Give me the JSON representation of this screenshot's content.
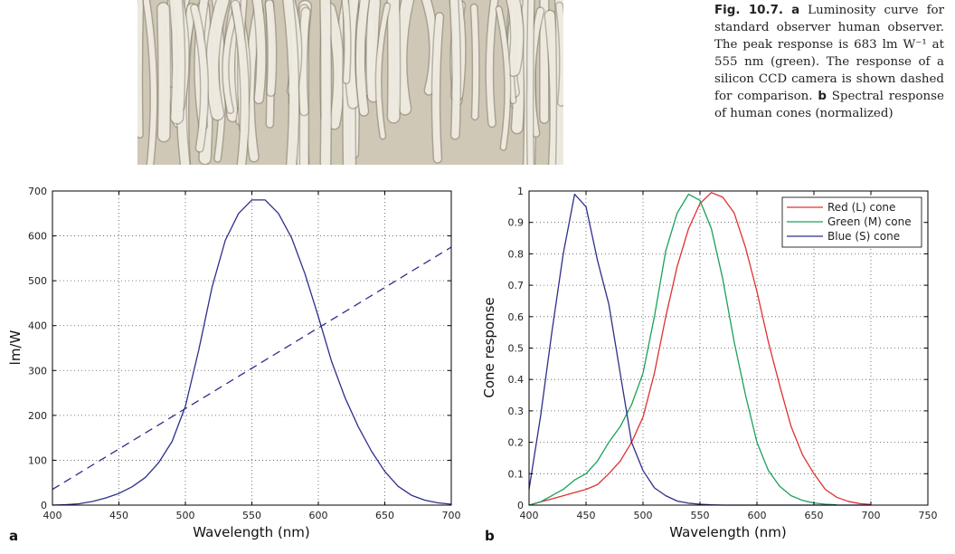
{
  "photo": {
    "icon": "sem-micrograph-image",
    "background": "#cfc8b6",
    "strand_color": "#f4f1e8",
    "shadow_color": "#8a8372"
  },
  "caption": {
    "label": "Fig. 10.7.",
    "part_a_letter": "a",
    "part_a_text": "Luminosity curve for standard observer human observer. The peak response is 683 lm W⁻¹ at 555 nm (green). The response of a silicon CCD camera is shown dashed for comparison.",
    "part_b_letter": "b",
    "part_b_text": "Spectral response of human cones (normalized)"
  },
  "chart_data": [
    {
      "type": "line",
      "panel_letter": "a",
      "xlabel": "Wavelength (nm)",
      "ylabel": "lm/W",
      "xlim": [
        400,
        700
      ],
      "ylim": [
        0,
        700
      ],
      "xticks": [
        400,
        450,
        500,
        550,
        600,
        650,
        700
      ],
      "yticks": [
        0,
        100,
        200,
        300,
        400,
        500,
        600,
        700
      ],
      "grid": true,
      "colors": {
        "line": "#2e2e8c"
      },
      "series": [
        {
          "style": "solid",
          "x": [
            400,
            410,
            420,
            430,
            440,
            450,
            460,
            470,
            480,
            490,
            500,
            510,
            520,
            530,
            540,
            550,
            560,
            570,
            580,
            590,
            600,
            610,
            620,
            630,
            640,
            650,
            660,
            670,
            680,
            690,
            700
          ],
          "y": [
            0,
            1,
            3,
            8,
            16,
            26,
            41,
            62,
            95,
            142,
            220,
            345,
            485,
            590,
            650,
            680,
            680,
            650,
            595,
            515,
            420,
            320,
            240,
            175,
            120,
            75,
            42,
            22,
            11,
            5,
            2
          ]
        },
        {
          "style": "dashed",
          "x": [
            400,
            700
          ],
          "y": [
            35,
            575
          ]
        }
      ]
    },
    {
      "type": "line",
      "panel_letter": "b",
      "xlabel": "Wavelength (nm)",
      "ylabel": "Cone response",
      "xlim": [
        400,
        750
      ],
      "ylim": [
        0,
        1
      ],
      "xticks": [
        400,
        450,
        500,
        550,
        600,
        650,
        700,
        750
      ],
      "yticks": [
        0,
        0.1,
        0.2,
        0.3,
        0.4,
        0.5,
        0.6,
        0.7,
        0.8,
        0.9,
        1
      ],
      "ytick_labels": [
        "0",
        "0.1",
        "0.2",
        "0.3",
        "0.4",
        "0.5",
        "0.6",
        "0.7",
        "0.8",
        "0.9",
        "1"
      ],
      "grid": true,
      "legend": "top-right",
      "series": [
        {
          "name": "Red (L) cone",
          "color": "#e03030",
          "x": [
            400,
            410,
            420,
            430,
            440,
            450,
            460,
            470,
            480,
            490,
            500,
            510,
            520,
            530,
            540,
            550,
            560,
            570,
            580,
            590,
            600,
            610,
            620,
            630,
            640,
            650,
            660,
            670,
            680,
            690,
            700
          ],
          "y": [
            0.0,
            0.01,
            0.02,
            0.03,
            0.04,
            0.05,
            0.065,
            0.1,
            0.14,
            0.2,
            0.28,
            0.42,
            0.6,
            0.76,
            0.88,
            0.96,
            0.995,
            0.98,
            0.93,
            0.82,
            0.68,
            0.52,
            0.38,
            0.25,
            0.16,
            0.1,
            0.05,
            0.025,
            0.012,
            0.005,
            0.002
          ]
        },
        {
          "name": "Green (M) cone",
          "color": "#1aa05a",
          "x": [
            400,
            410,
            420,
            430,
            440,
            450,
            460,
            470,
            480,
            490,
            500,
            510,
            520,
            530,
            540,
            550,
            560,
            570,
            580,
            590,
            600,
            610,
            620,
            630,
            640,
            650,
            660,
            670
          ],
          "y": [
            0.0,
            0.01,
            0.03,
            0.05,
            0.08,
            0.1,
            0.14,
            0.2,
            0.25,
            0.32,
            0.42,
            0.6,
            0.81,
            0.93,
            0.99,
            0.97,
            0.88,
            0.72,
            0.52,
            0.35,
            0.2,
            0.11,
            0.06,
            0.03,
            0.015,
            0.007,
            0.003,
            0.001
          ]
        },
        {
          "name": "Blue (S) cone",
          "color": "#2e2e8c",
          "x": [
            400,
            410,
            420,
            430,
            440,
            450,
            460,
            470,
            480,
            490,
            500,
            510,
            520,
            530,
            540,
            550,
            560,
            570,
            580,
            590,
            600,
            620,
            640,
            660,
            680,
            700
          ],
          "y": [
            0.05,
            0.28,
            0.55,
            0.8,
            0.99,
            0.95,
            0.78,
            0.64,
            0.42,
            0.2,
            0.11,
            0.055,
            0.03,
            0.013,
            0.006,
            0.003,
            0.001,
            0.0,
            0.0,
            0.0,
            0.0,
            0.0,
            0.0,
            0.0,
            0.0,
            0.0
          ]
        }
      ]
    }
  ]
}
